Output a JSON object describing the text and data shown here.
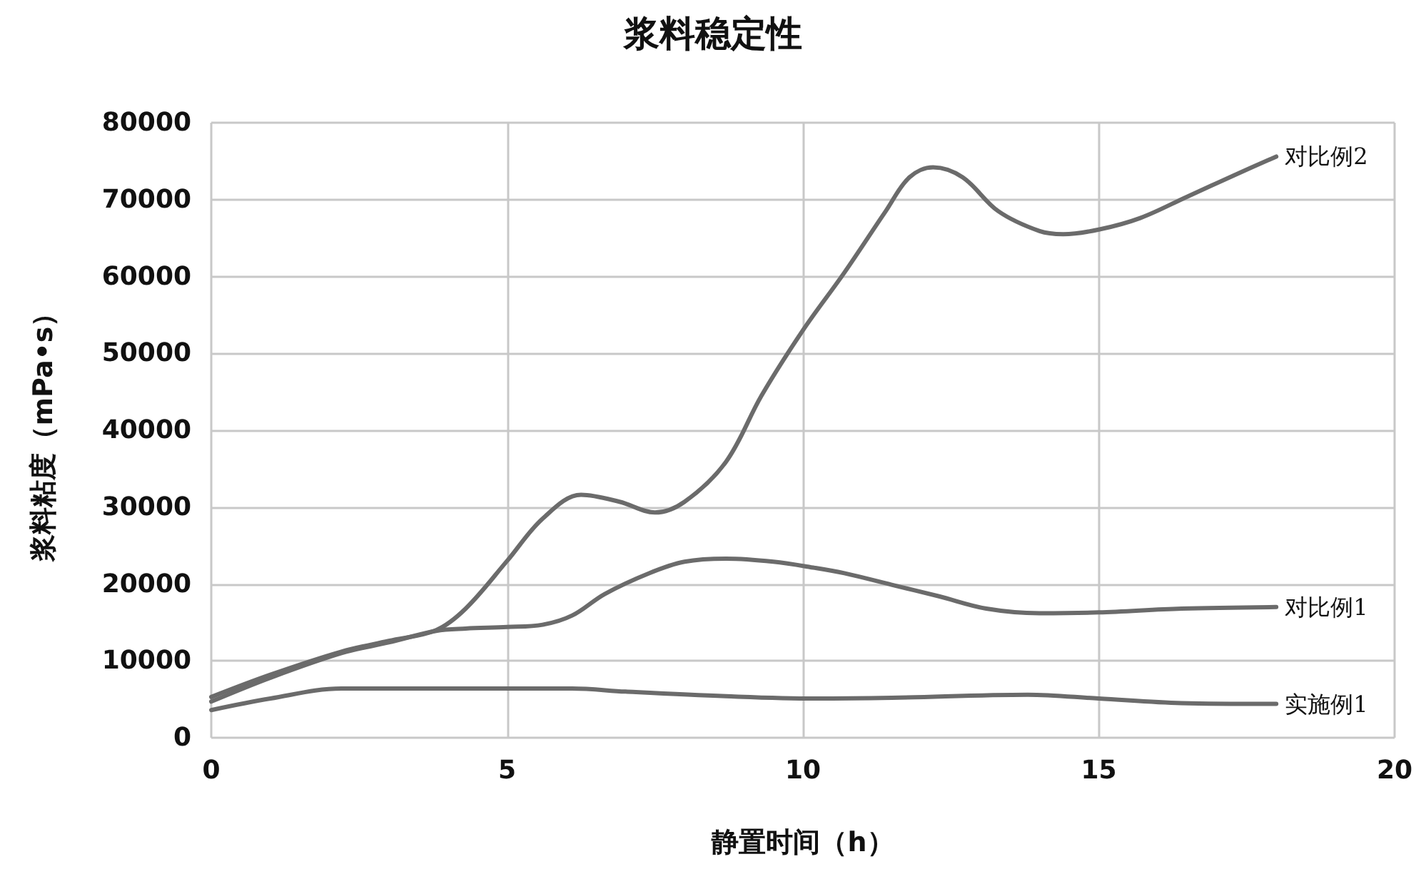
{
  "chart_data": {
    "type": "line",
    "title": "浆料稳定性",
    "xlabel": "静置时间（h）",
    "ylabel": "浆料粘度（mPa•s）",
    "xlim": [
      0,
      20
    ],
    "xticks": [
      0,
      5,
      10,
      15,
      20
    ],
    "ylim": [
      0,
      80000
    ],
    "yticks": [
      0,
      10000,
      20000,
      30000,
      40000,
      50000,
      60000,
      70000,
      80000
    ],
    "grid": true,
    "legend": false,
    "marker": "none",
    "line_style": "solid",
    "series": [
      {
        "name": "对比例2",
        "color": "#6b6b6b",
        "x": [
          0,
          1.0,
          2.2,
          3.0,
          3.8,
          4.3,
          5.0,
          5.6,
          6.25,
          6.9,
          7.5,
          8.0,
          8.7,
          9.3,
          10.0,
          10.7,
          11.4,
          11.8,
          12.2,
          12.7,
          13.3,
          14.0,
          14.4,
          15.0,
          15.7,
          16.5,
          17.3,
          18.0
        ],
        "values": [
          5300,
          8200,
          11200,
          12600,
          14000,
          16800,
          23000,
          28500,
          31600,
          30700,
          29300,
          30700,
          35900,
          44500,
          53000,
          60500,
          68500,
          72900,
          74200,
          72900,
          68500,
          65900,
          65500,
          66100,
          67600,
          70400,
          73200,
          75600
        ]
      },
      {
        "name": "对比例1",
        "color": "#6b6b6b",
        "x": [
          0,
          1.0,
          2.2,
          3.0,
          3.8,
          4.3,
          5.0,
          5.6,
          6.1,
          6.65,
          7.4,
          8.0,
          8.7,
          9.5,
          10.2,
          10.7,
          11.5,
          12.3,
          13.1,
          14.0,
          15.0,
          16.4,
          18.0
        ],
        "values": [
          4700,
          7800,
          11000,
          12400,
          13900,
          14200,
          14400,
          14700,
          15900,
          18700,
          21400,
          22900,
          23300,
          22900,
          22100,
          21400,
          19900,
          18400,
          16800,
          16200,
          16300,
          16800,
          17000
        ]
      },
      {
        "name": "实施例1",
        "color": "#6b6b6b",
        "x": [
          0,
          1.0,
          2.2,
          3.0,
          5.0,
          6.1,
          7.0,
          8.7,
          10.2,
          11.5,
          13.8,
          15.0,
          16.4,
          18.0
        ],
        "values": [
          3600,
          5100,
          6400,
          6400,
          6400,
          6400,
          6000,
          5400,
          5100,
          5200,
          5600,
          5100,
          4500,
          4400
        ]
      }
    ]
  }
}
